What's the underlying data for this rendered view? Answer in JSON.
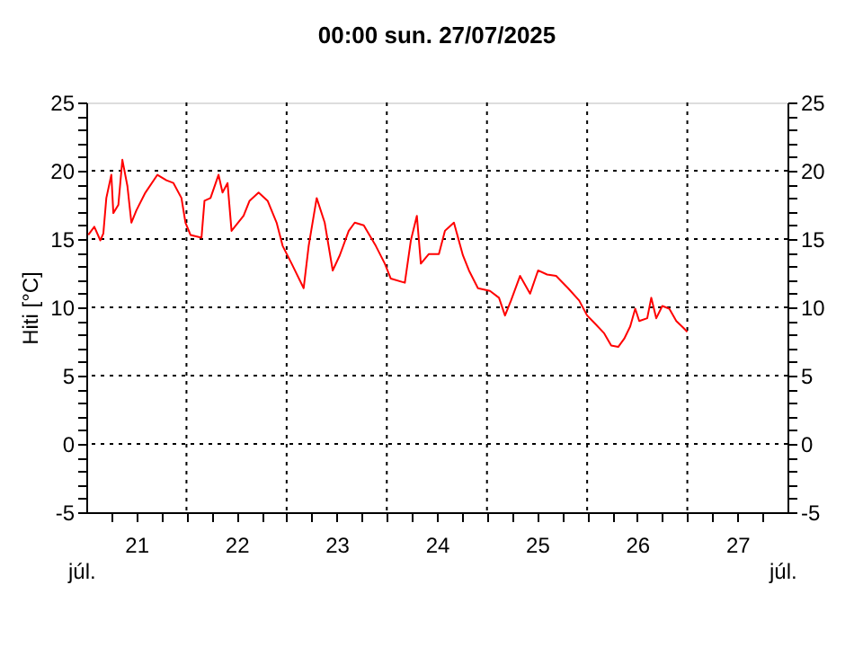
{
  "chart_data": {
    "type": "line",
    "title": "00:00   sun.  27/07/2025",
    "ylabel": "Hiti [°C]",
    "x": [
      21.02,
      21.08,
      21.14,
      21.17,
      21.2,
      21.25,
      21.27,
      21.32,
      21.36,
      21.41,
      21.45,
      21.5,
      21.59,
      21.71,
      21.8,
      21.87,
      21.95,
      21.99,
      22.04,
      22.15,
      22.18,
      22.24,
      22.32,
      22.36,
      22.41,
      22.45,
      22.57,
      22.63,
      22.72,
      22.81,
      22.9,
      22.96,
      23.05,
      23.17,
      23.22,
      23.3,
      23.38,
      23.46,
      23.53,
      23.62,
      23.68,
      23.77,
      23.89,
      23.98,
      24.04,
      24.18,
      24.24,
      24.3,
      24.34,
      24.42,
      24.52,
      24.58,
      24.67,
      24.76,
      24.82,
      24.91,
      25.03,
      25.12,
      25.18,
      25.24,
      25.33,
      25.43,
      25.51,
      25.6,
      25.69,
      25.81,
      25.92,
      26.0,
      26.08,
      26.17,
      26.24,
      26.31,
      26.37,
      26.43,
      26.48,
      26.52,
      26.6,
      26.64,
      26.69,
      26.75,
      26.82,
      26.89,
      26.96,
      27.0
    ],
    "series": [
      {
        "color": "#ff0000",
        "values": [
          15.3,
          15.9,
          14.9,
          15.4,
          18.0,
          19.7,
          16.9,
          17.5,
          20.8,
          18.9,
          16.2,
          17.1,
          18.4,
          19.7,
          19.3,
          19.1,
          18.0,
          16.2,
          15.3,
          15.1,
          17.8,
          18.0,
          19.7,
          18.4,
          19.1,
          15.6,
          16.7,
          17.8,
          18.4,
          17.8,
          16.2,
          14.5,
          13.2,
          11.4,
          14.5,
          18.0,
          16.2,
          12.7,
          13.8,
          15.6,
          16.2,
          16.0,
          14.5,
          13.2,
          12.1,
          11.8,
          14.9,
          16.7,
          13.2,
          13.9,
          13.9,
          15.6,
          16.2,
          13.8,
          12.7,
          11.4,
          11.2,
          10.7,
          9.4,
          10.5,
          12.3,
          11.0,
          12.7,
          12.4,
          12.3,
          11.4,
          10.5,
          9.4,
          8.8,
          8.1,
          7.2,
          7.1,
          7.7,
          8.6,
          9.9,
          9.0,
          9.2,
          10.7,
          9.2,
          10.1,
          9.9,
          9.0,
          8.5,
          8.2
        ]
      }
    ],
    "xlim": [
      21,
      28
    ],
    "xticks": [
      {
        "value": 21.25,
        "label": null
      },
      {
        "value": 21.5,
        "label": "21"
      },
      {
        "value": 21.75,
        "label": null
      },
      {
        "value": 22,
        "label": null
      },
      {
        "value": 22.25,
        "label": null
      },
      {
        "value": 22.5,
        "label": "22"
      },
      {
        "value": 22.75,
        "label": null
      },
      {
        "value": 23,
        "label": null
      },
      {
        "value": 23.25,
        "label": null
      },
      {
        "value": 23.5,
        "label": "23"
      },
      {
        "value": 23.75,
        "label": null
      },
      {
        "value": 24,
        "label": null
      },
      {
        "value": 24.25,
        "label": null
      },
      {
        "value": 24.5,
        "label": "24"
      },
      {
        "value": 24.75,
        "label": null
      },
      {
        "value": 25,
        "label": null
      },
      {
        "value": 25.25,
        "label": null
      },
      {
        "value": 25.5,
        "label": "25"
      },
      {
        "value": 25.75,
        "label": null
      },
      {
        "value": 26,
        "label": null
      },
      {
        "value": 26.25,
        "label": null
      },
      {
        "value": 26.5,
        "label": "26"
      },
      {
        "value": 26.75,
        "label": null
      },
      {
        "value": 27,
        "label": null
      },
      {
        "value": 27.25,
        "label": null
      },
      {
        "value": 27.5,
        "label": "27"
      },
      {
        "value": 27.75,
        "label": null
      }
    ],
    "ylim": [
      -5,
      25
    ],
    "yticks": [
      -5,
      {
        "value": -4,
        "label": null
      },
      {
        "value": -3,
        "label": null
      },
      {
        "value": -2,
        "label": null
      },
      {
        "value": -1,
        "label": null
      },
      0,
      {
        "value": 1,
        "label": null
      },
      {
        "value": 2,
        "label": null
      },
      {
        "value": 3,
        "label": null
      },
      {
        "value": 4,
        "label": null
      },
      5,
      {
        "value": 6,
        "label": null
      },
      {
        "value": 7,
        "label": null
      },
      {
        "value": 8,
        "label": null
      },
      {
        "value": 9,
        "label": null
      },
      10,
      {
        "value": 11,
        "label": null
      },
      {
        "value": 12,
        "label": null
      },
      {
        "value": 13,
        "label": null
      },
      {
        "value": 14,
        "label": null
      },
      15,
      {
        "value": 16,
        "label": null
      },
      {
        "value": 17,
        "label": null
      },
      {
        "value": 18,
        "label": null
      },
      {
        "value": 19,
        "label": null
      },
      20,
      {
        "value": 21,
        "label": null
      },
      {
        "value": 22,
        "label": null
      },
      {
        "value": 23,
        "label": null
      },
      {
        "value": 24,
        "label": null
      },
      25
    ],
    "y2lim": [
      -5,
      25
    ],
    "y2ticks": [
      -5,
      {
        "value": -4,
        "label": null
      },
      {
        "value": -3,
        "label": null
      },
      {
        "value": -2,
        "label": null
      },
      {
        "value": -1,
        "label": null
      },
      0,
      {
        "value": 1,
        "label": null
      },
      {
        "value": 2,
        "label": null
      },
      {
        "value": 3,
        "label": null
      },
      {
        "value": 4,
        "label": null
      },
      5,
      {
        "value": 6,
        "label": null
      },
      {
        "value": 7,
        "label": null
      },
      {
        "value": 8,
        "label": null
      },
      {
        "value": 9,
        "label": null
      },
      10,
      {
        "value": 11,
        "label": null
      },
      {
        "value": 12,
        "label": null
      },
      {
        "value": 13,
        "label": null
      },
      {
        "value": 14,
        "label": null
      },
      15,
      {
        "value": 16,
        "label": null
      },
      {
        "value": 17,
        "label": null
      },
      {
        "value": 18,
        "label": null
      },
      {
        "value": 19,
        "label": null
      },
      20,
      {
        "value": 21,
        "label": null
      },
      {
        "value": 22,
        "label": null
      },
      {
        "value": 23,
        "label": null
      },
      {
        "value": 24,
        "label": null
      },
      25
    ],
    "grid": true,
    "marker": "none",
    "line_style": "solid",
    "annotations": [
      "júl.",
      "júl."
    ]
  }
}
